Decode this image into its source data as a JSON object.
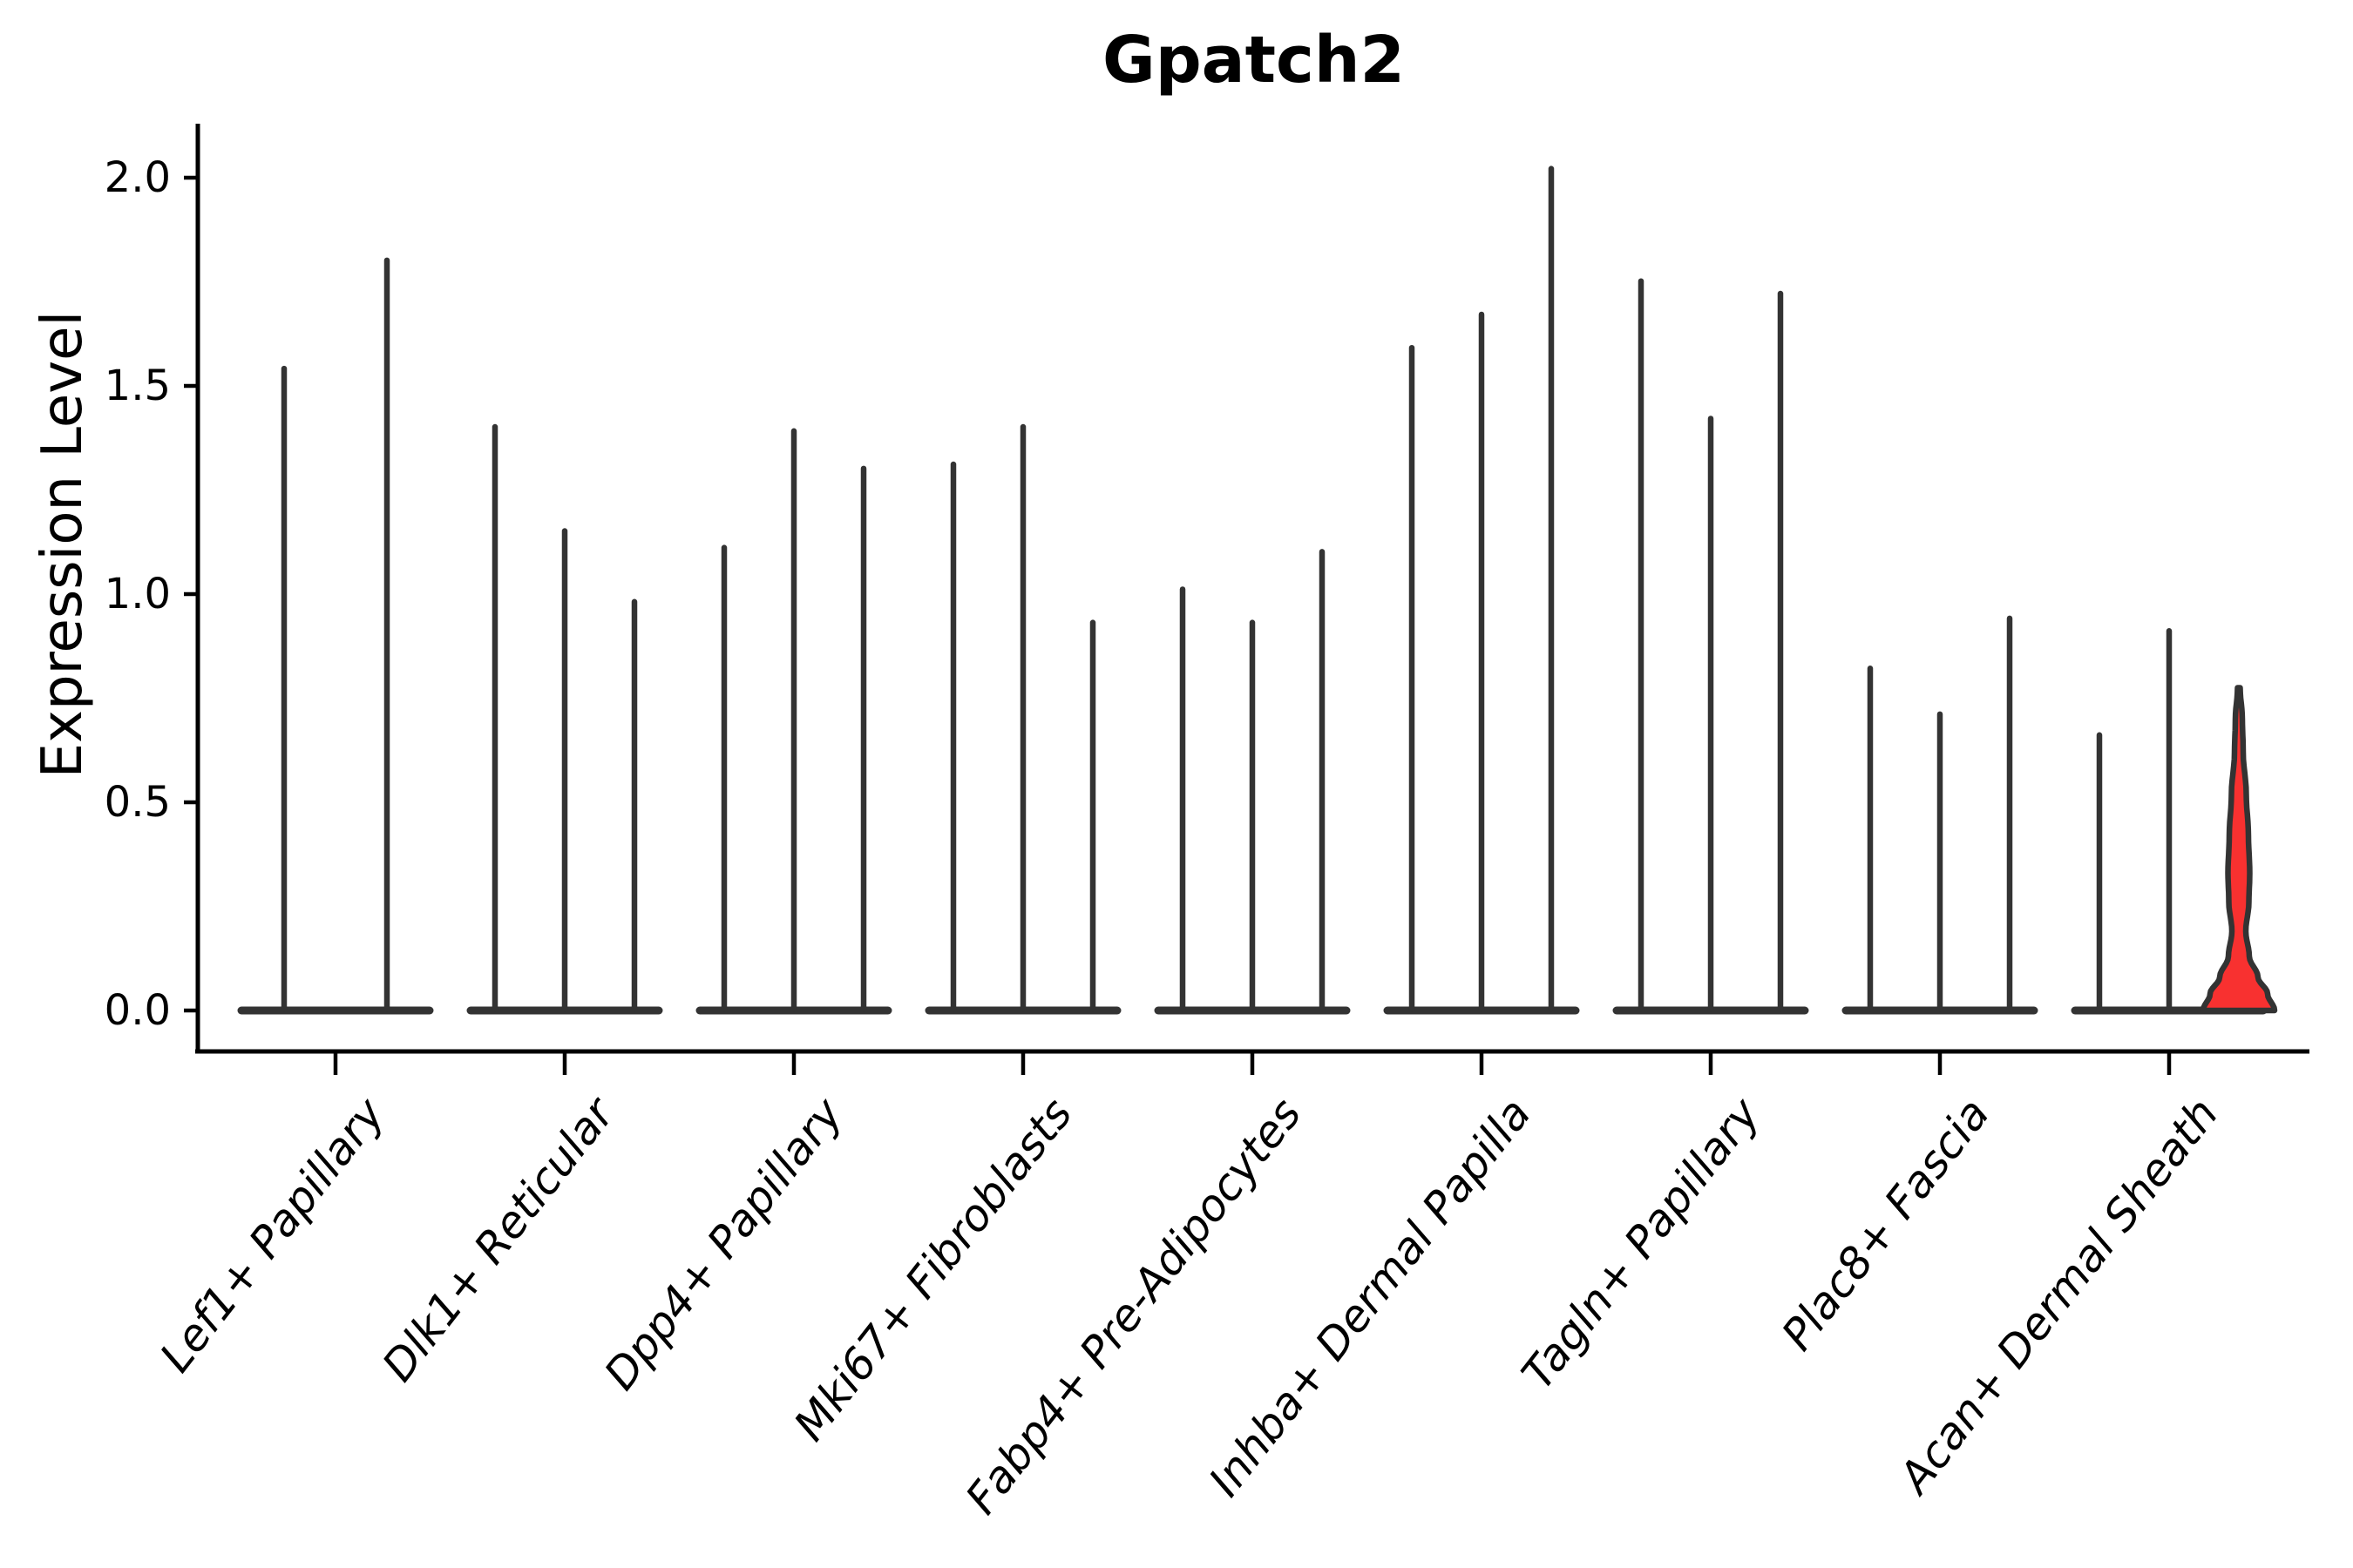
{
  "chart_data": {
    "type": "violin",
    "title": "Gpatch2",
    "ylabel": "Expression Level",
    "xlabel": "",
    "grid": false,
    "legend": false,
    "ylim": [
      -0.1,
      2.13
    ],
    "yticks": [
      {
        "value": 0.0,
        "label": "0.0"
      },
      {
        "value": 0.5,
        "label": "0.5"
      },
      {
        "value": 1.0,
        "label": "1.0"
      },
      {
        "value": 1.5,
        "label": "1.5"
      },
      {
        "value": 2.0,
        "label": "2.0"
      }
    ],
    "categories": [
      "Lef1+ Papillary",
      "Dlk1+ Reticular",
      "Dpp4+ Papillary",
      "Mki67+ Fibroblasts",
      "Fabp4+ Pre-Adipocytes",
      "Inhba+ Dermal Papilla",
      "Tagln+ Papillary",
      "Plac8+ Fascia",
      "Acan+ Dermal Sheath"
    ],
    "groups": [
      {
        "category": "Lef1+ Papillary",
        "violin_max": [
          1.55,
          1.81
        ],
        "highlight_index": -1
      },
      {
        "category": "Dlk1+ Reticular",
        "violin_max": [
          1.41,
          1.16,
          0.99
        ],
        "highlight_index": -1
      },
      {
        "category": "Dpp4+ Papillary",
        "violin_max": [
          1.12,
          1.4,
          1.31
        ],
        "highlight_index": -1
      },
      {
        "category": "Mki67+ Fibroblasts",
        "violin_max": [
          1.32,
          1.41,
          0.94
        ],
        "highlight_index": -1
      },
      {
        "category": "Fabp4+ Pre-Adipocytes",
        "violin_max": [
          1.02,
          0.94,
          1.11
        ],
        "highlight_index": -1
      },
      {
        "category": "Inhba+ Dermal Papilla",
        "violin_max": [
          1.6,
          1.68,
          2.03
        ],
        "highlight_index": -1
      },
      {
        "category": "Tagln+ Papillary",
        "violin_max": [
          1.76,
          1.43,
          1.73
        ],
        "highlight_index": -1
      },
      {
        "category": "Plac8+ Fascia",
        "violin_max": [
          0.83,
          0.72,
          0.95
        ],
        "highlight_index": -1
      },
      {
        "category": "Acan+ Dermal Sheath",
        "violin_max": [
          0.67,
          0.92,
          0.77
        ],
        "highlight_index": 2
      }
    ],
    "highlight_violin": {
      "category": "Acan+ Dermal Sheath",
      "max_value": 0.77,
      "fill_color": "#f83130",
      "profile_value_halfwidth": [
        [
          0.775,
          1.5
        ],
        [
          0.7,
          4
        ],
        [
          0.62,
          5
        ],
        [
          0.52,
          8.5
        ],
        [
          0.42,
          11
        ],
        [
          0.33,
          12.5
        ],
        [
          0.26,
          11.5
        ],
        [
          0.19,
          8
        ],
        [
          0.13,
          12
        ],
        [
          0.08,
          22
        ],
        [
          0.04,
          33
        ],
        [
          0.0,
          41
        ]
      ]
    },
    "violin_outline_color": "#333333",
    "axis_color": "#000000",
    "background_color": "#ffffff"
  }
}
